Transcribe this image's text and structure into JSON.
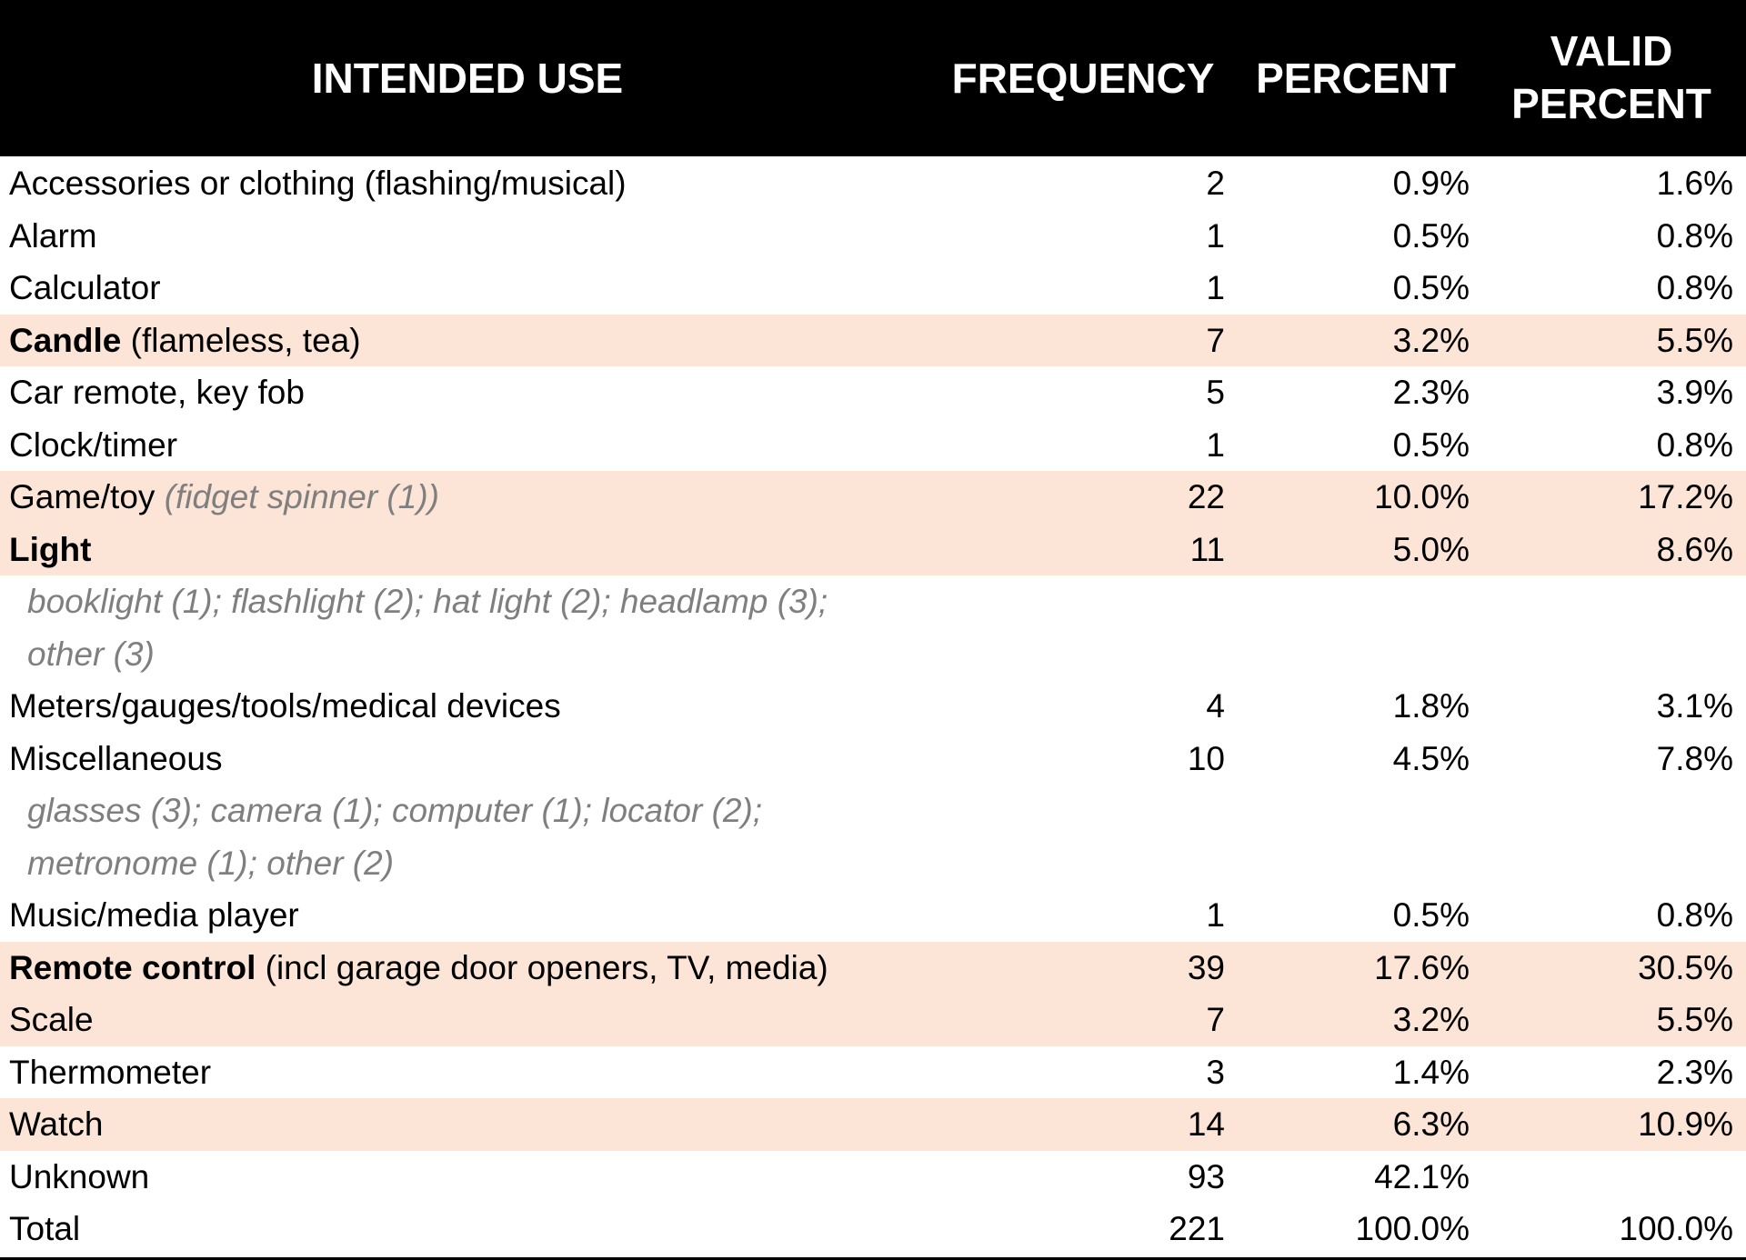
{
  "table": {
    "header": [
      "INTENDED USE",
      "FREQUENCY",
      "PERCENT",
      "VALID PERCENT"
    ],
    "highlight_color": "#fce4d6",
    "rows": [
      {
        "label": [
          {
            "text": "Accessories or clothing (flashing/musical)",
            "style": "normal"
          }
        ],
        "frequency": 2,
        "percent": "0.9%",
        "valid_percent": "1.6%"
      },
      {
        "label": [
          {
            "text": "Alarm",
            "style": "normal"
          }
        ],
        "frequency": 1,
        "percent": "0.5%",
        "valid_percent": "0.8%"
      },
      {
        "label": [
          {
            "text": "Calculator",
            "style": "normal"
          }
        ],
        "frequency": 1,
        "percent": "0.5%",
        "valid_percent": "0.8%"
      },
      {
        "label": [
          {
            "text": "Candle",
            "style": "bold"
          },
          {
            "text": "(flameless, tea)",
            "style": "normal"
          }
        ],
        "frequency": 7,
        "percent": "3.2%",
        "valid_percent": "5.5%",
        "highlight": true
      },
      {
        "label": [
          {
            "text": "Car remote, key fob",
            "style": "normal"
          }
        ],
        "frequency": 5,
        "percent": "2.3%",
        "valid_percent": "3.9%"
      },
      {
        "label": [
          {
            "text": "Clock/timer",
            "style": "normal"
          }
        ],
        "frequency": 1,
        "percent": "0.5%",
        "valid_percent": "0.8%"
      },
      {
        "label": [
          {
            "text": "Game/toy",
            "style": "normal"
          },
          {
            "text": "(fidget spinner (1))",
            "style": "italic"
          }
        ],
        "frequency": 22,
        "percent": "10.0%",
        "valid_percent": "17.2%",
        "highlight": true
      },
      {
        "label": [
          {
            "text": "Light",
            "style": "bold"
          }
        ],
        "frequency": 11,
        "percent": "5.0%",
        "valid_percent": "8.6%",
        "highlight": true
      },
      {
        "note_lines": [
          "booklight (1); flashlight (2); hat light (2); headlamp (3);",
          "other (3)"
        ]
      },
      {
        "label": [
          {
            "text": "Meters/gauges/tools/medical devices",
            "style": "normal"
          }
        ],
        "frequency": 4,
        "percent": "1.8%",
        "valid_percent": "3.1%"
      },
      {
        "label": [
          {
            "text": "Miscellaneous",
            "style": "normal"
          }
        ],
        "frequency": 10,
        "percent": "4.5%",
        "valid_percent": "7.8%"
      },
      {
        "note_lines": [
          "glasses (3); camera (1); computer (1); locator (2);",
          "metronome (1); other (2)"
        ]
      },
      {
        "label": [
          {
            "text": "Music/media player",
            "style": "normal"
          }
        ],
        "frequency": 1,
        "percent": "0.5%",
        "valid_percent": "0.8%"
      },
      {
        "label": [
          {
            "text": "Remote control",
            "style": "bold"
          },
          {
            "text": "(incl garage door openers, TV, media)",
            "style": "normal"
          }
        ],
        "frequency": 39,
        "percent": "17.6%",
        "valid_percent": "30.5%",
        "highlight": true
      },
      {
        "label": [
          {
            "text": "Scale",
            "style": "normal"
          }
        ],
        "frequency": 7,
        "percent": "3.2%",
        "valid_percent": "5.5%",
        "highlight": true
      },
      {
        "label": [
          {
            "text": "Thermometer",
            "style": "normal"
          }
        ],
        "frequency": 3,
        "percent": "1.4%",
        "valid_percent": "2.3%"
      },
      {
        "label": [
          {
            "text": "Watch",
            "style": "normal"
          }
        ],
        "frequency": 14,
        "percent": "6.3%",
        "valid_percent": "10.9%",
        "highlight": true
      },
      {
        "label": [
          {
            "text": "Unknown",
            "style": "normal"
          }
        ],
        "frequency": 93,
        "percent": "42.1%"
      },
      {
        "label": [
          {
            "text": "Total",
            "style": "normal"
          }
        ],
        "frequency": 221,
        "percent": "100.0%",
        "valid_percent": "100.0%"
      }
    ]
  }
}
